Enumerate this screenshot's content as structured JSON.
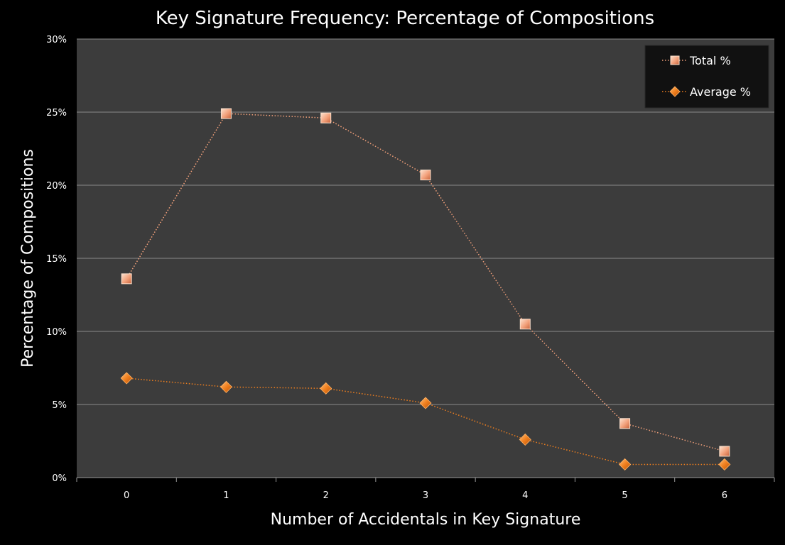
{
  "chart_data": {
    "type": "line",
    "title": "Key Signature Frequency: Percentage of Compositions",
    "xlabel": "Number of Accidentals in Key Signature",
    "ylabel": "Percentage of Compositions",
    "categories": [
      "0",
      "1",
      "2",
      "3",
      "4",
      "5",
      "6"
    ],
    "yticks": [
      "0%",
      "5%",
      "10%",
      "15%",
      "20%",
      "25%",
      "30%"
    ],
    "ylim": [
      0,
      30
    ],
    "grid": true,
    "legend_position": "top-right",
    "series": [
      {
        "name": "Total %",
        "marker": "square",
        "color": "#f2a07a",
        "values": [
          13.6,
          24.9,
          24.6,
          20.7,
          10.5,
          3.7,
          1.8
        ]
      },
      {
        "name": "Average %",
        "marker": "diamond",
        "color": "#f07f1e",
        "values": [
          6.8,
          6.2,
          6.1,
          5.1,
          2.6,
          0.9,
          0.9
        ]
      }
    ],
    "colors": {
      "background": "#000000",
      "plot_area": "#3c3c3c",
      "gridline": "#8a8a8a",
      "legend_bg": "#111111"
    }
  }
}
